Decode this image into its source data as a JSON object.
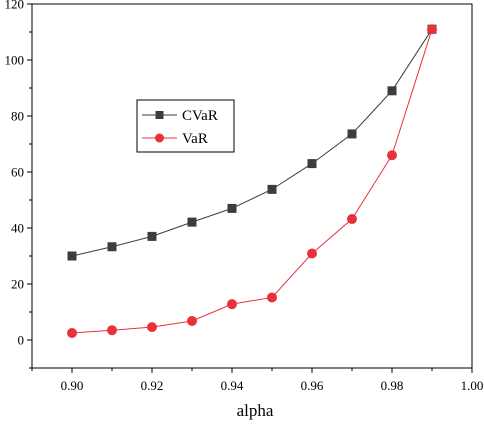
{
  "chart_data": {
    "type": "line",
    "title": "",
    "xlabel": "alpha",
    "ylabel": "",
    "xlim": [
      0.89,
      1.0
    ],
    "ylim": [
      -10,
      120
    ],
    "x": [
      0.9,
      0.91,
      0.92,
      0.93,
      0.94,
      0.95,
      0.96,
      0.97,
      0.98,
      0.99
    ],
    "xticks": [
      "0.90",
      "0.92",
      "0.94",
      "0.96",
      "0.98",
      "1.00"
    ],
    "yticks": [
      "0",
      "20",
      "40",
      "60",
      "80",
      "100",
      "120"
    ],
    "grid": false,
    "legend_position": "upper-left",
    "series": [
      {
        "name": "CVaR",
        "marker": "square",
        "color": "#3d3d3d",
        "values": [
          30.0,
          33.3,
          37.0,
          42.1,
          47.0,
          53.8,
          63.0,
          73.6,
          89.0,
          111.0
        ]
      },
      {
        "name": "VaR",
        "marker": "circle",
        "color": "#e8323a",
        "values": [
          2.5,
          3.5,
          4.6,
          6.8,
          12.8,
          15.2,
          30.9,
          43.2,
          66.0,
          111.0
        ]
      }
    ]
  }
}
